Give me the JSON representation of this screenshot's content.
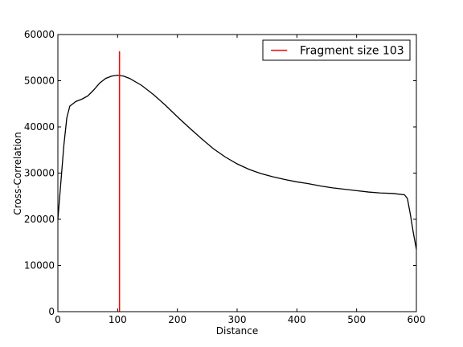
{
  "chart_data": {
    "type": "line",
    "xlabel": "Distance",
    "ylabel": "Cross-Correlation",
    "xlim": [
      0,
      600
    ],
    "xticks": [
      0,
      100,
      200,
      300,
      400,
      500,
      600
    ],
    "ylim": [
      0,
      60000
    ],
    "yticks": [
      0,
      10000,
      20000,
      30000,
      40000,
      50000,
      60000
    ],
    "legend": "upper right",
    "series": [
      {
        "color": "#000000",
        "x": [
          0,
          5,
          10,
          15,
          20,
          30,
          40,
          50,
          60,
          70,
          80,
          90,
          100,
          110,
          120,
          140,
          160,
          180,
          200,
          220,
          240,
          260,
          280,
          300,
          320,
          340,
          360,
          380,
          400,
          420,
          440,
          460,
          480,
          500,
          520,
          540,
          560,
          580,
          585,
          590,
          595,
          600
        ],
        "values": [
          20000,
          28000,
          36000,
          42000,
          44500,
          45500,
          46000,
          46700,
          48000,
          49500,
          50500,
          51000,
          51200,
          51000,
          50500,
          49000,
          47000,
          44700,
          42200,
          39800,
          37500,
          35300,
          33500,
          32000,
          30800,
          29900,
          29200,
          28600,
          28100,
          27700,
          27200,
          26800,
          26500,
          26200,
          25900,
          25700,
          25600,
          25300,
          24500,
          21000,
          17000,
          13500
        ]
      },
      {
        "name": "Fragment size 103",
        "color": "#ff0000",
        "x": [
          103,
          103
        ],
        "values": [
          0,
          56400
        ]
      }
    ]
  }
}
